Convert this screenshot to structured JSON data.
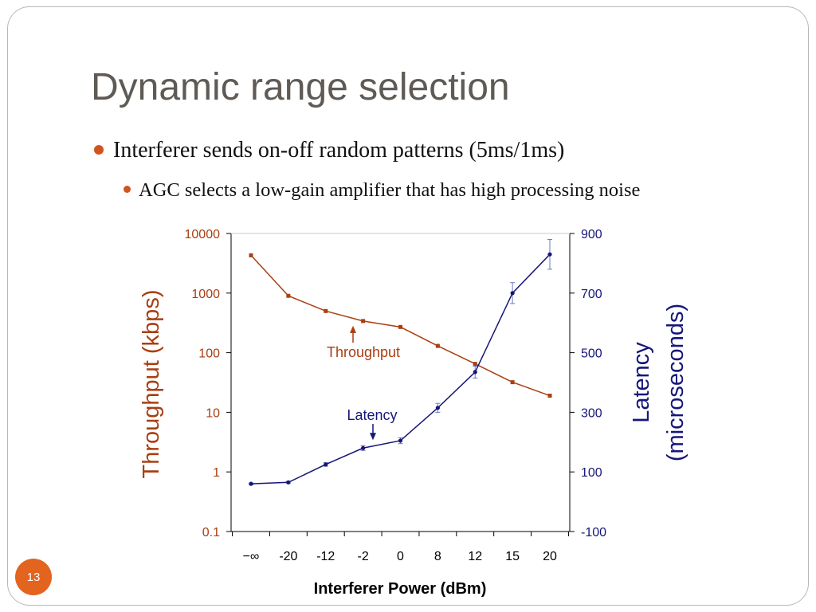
{
  "slide": {
    "title": "Dynamic range selection",
    "bullets": [
      "Interferer sends on-off random patterns (5ms/1ms)",
      "AGC selects a low-gain amplifier that has high processing noise"
    ],
    "page_number": "13"
  },
  "colors": {
    "throughput": "#a93f12",
    "latency": "#16167a",
    "bullet": "#d2531f",
    "badge": "#e2641f",
    "title": "#5f5a55"
  },
  "chart_data": {
    "type": "line",
    "title": "",
    "xlabel": "Interferer Power (dBm)",
    "categories": [
      "−∞",
      "-20",
      "-12",
      "-2",
      "0",
      "8",
      "12",
      "15",
      "20"
    ],
    "y_left": {
      "label": "Throughput (kbps)",
      "scale": "log",
      "range": [
        0.1,
        10000
      ],
      "ticks": [
        0.1,
        1,
        10,
        100,
        1000,
        10000
      ],
      "tick_labels": [
        "0.1",
        "1",
        "10",
        "100",
        "1000",
        "10000"
      ]
    },
    "y_right": {
      "label_lines": [
        "Latency",
        "(microseconds)"
      ],
      "scale": "linear",
      "range": [
        -100,
        900
      ],
      "ticks": [
        -100,
        100,
        300,
        500,
        700,
        900
      ],
      "tick_labels": [
        "-100",
        "100",
        "300",
        "500",
        "700",
        "900"
      ]
    },
    "series": [
      {
        "name": "Throughput",
        "axis": "left",
        "values": [
          4300,
          900,
          500,
          340,
          270,
          130,
          65,
          32,
          19
        ]
      },
      {
        "name": "Latency",
        "axis": "right",
        "values": [
          60,
          65,
          125,
          180,
          205,
          315,
          435,
          700,
          830
        ],
        "errors": [
          3,
          3,
          6,
          8,
          10,
          15,
          20,
          35,
          50
        ]
      }
    ],
    "annotations": [
      {
        "text": "Throughput",
        "series": "Throughput"
      },
      {
        "text": "Latency",
        "series": "Latency"
      }
    ],
    "legend": "none",
    "grid": false
  }
}
